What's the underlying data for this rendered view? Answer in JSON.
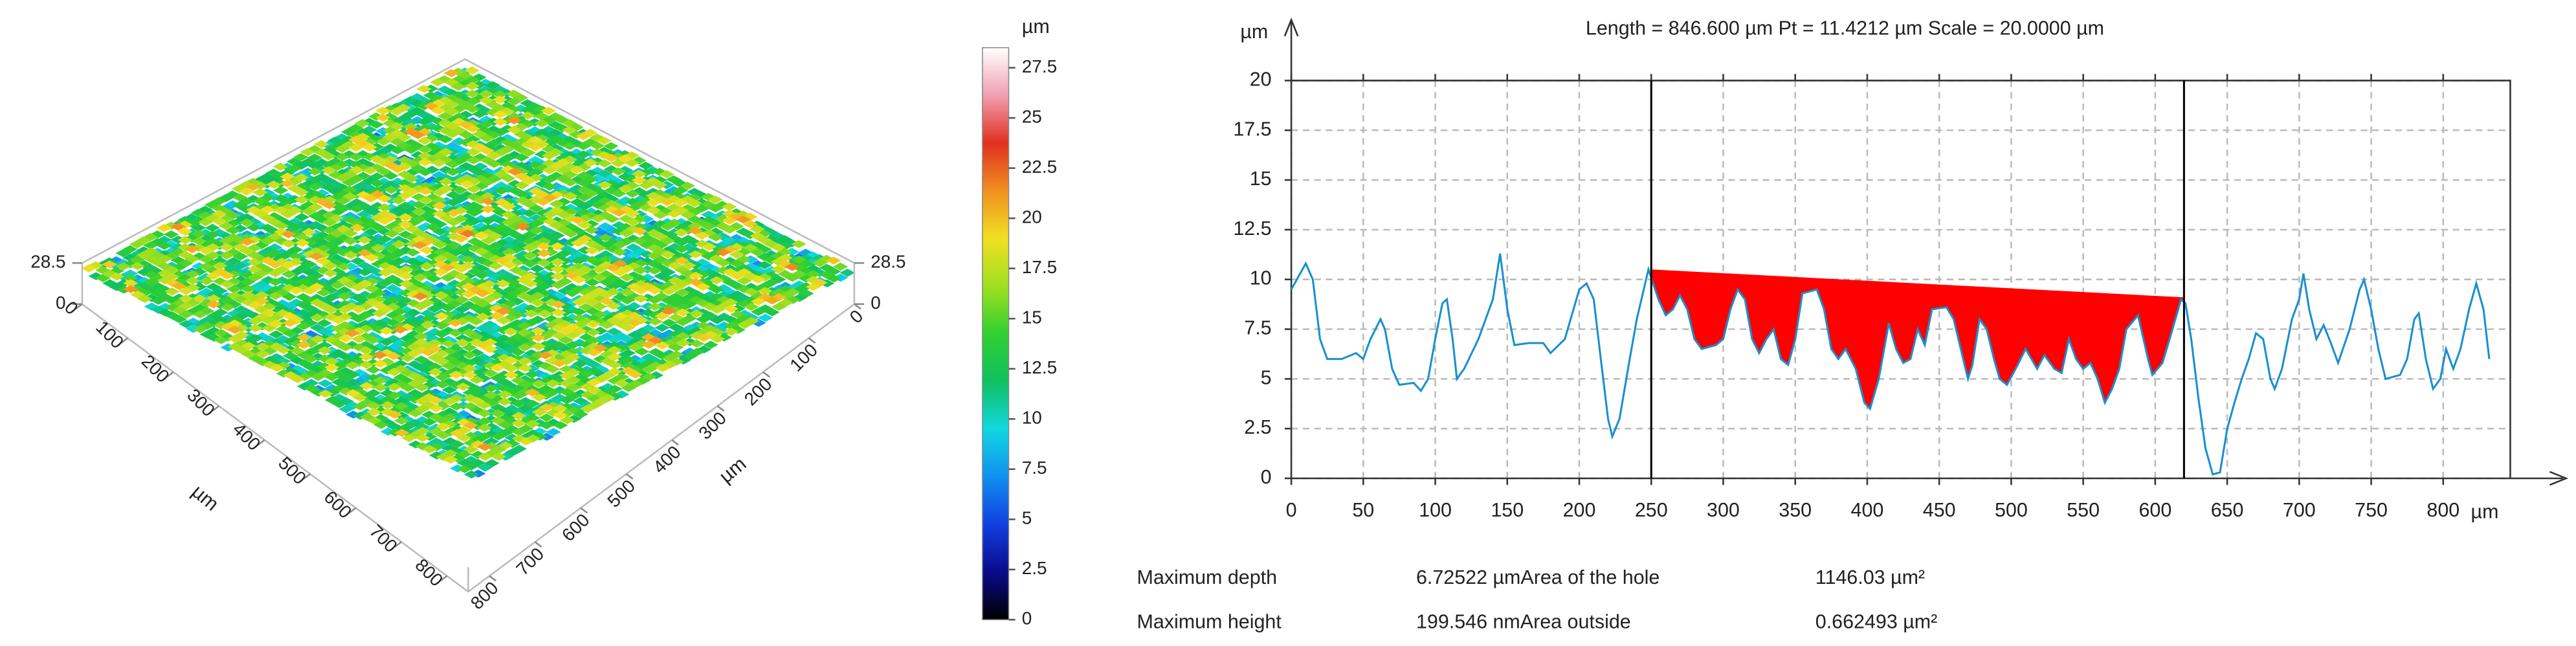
{
  "chart_data": [
    {
      "type": "surface",
      "zlim": [
        0,
        28.5
      ],
      "zticks": [
        0,
        28.5
      ],
      "xlim": [
        0,
        846.6
      ],
      "xticks": [
        0,
        100,
        200,
        300,
        400,
        500,
        600,
        700,
        800
      ],
      "xlabel": "µm",
      "ylim": [
        0,
        846.6
      ],
      "yticks": [
        0,
        100,
        200,
        300,
        400,
        500,
        600,
        700,
        800
      ],
      "ylabel": "µm",
      "colorbar": {
        "label": "µm",
        "lim": [
          0,
          28.5
        ],
        "ticks": [
          0,
          2.5,
          5,
          7.5,
          10,
          12.5,
          15,
          17.5,
          20,
          22.5,
          25,
          27.5
        ],
        "colors": [
          "#000000",
          "#0a0a8c",
          "#1040e0",
          "#1090f0",
          "#10d8e0",
          "#10c060",
          "#30d030",
          "#a0e020",
          "#f0e020",
          "#f09020",
          "#e03020",
          "#f0a0b0",
          "#ffffff"
        ]
      }
    },
    {
      "type": "line",
      "title": "Length = 846.600 µm  Pt = 11.4212 µm  Scale = 20.0000 µm",
      "x_unit": "µm",
      "y_unit": "µm",
      "xlim": [
        0,
        846.6
      ],
      "xticks": [
        0,
        50,
        100,
        150,
        200,
        250,
        300,
        350,
        400,
        450,
        500,
        550,
        600,
        650,
        700,
        750,
        800
      ],
      "ylim": [
        0,
        20
      ],
      "yticks": [
        0,
        2.5,
        5,
        7.5,
        10,
        12.5,
        15,
        17.5,
        20
      ],
      "grid": true,
      "markers": [
        250,
        620
      ],
      "hole_level": [
        10.5,
        9.1
      ],
      "hole_color": "#ff0000",
      "x": [
        0,
        10,
        15,
        20,
        25,
        35,
        45,
        50,
        55,
        62,
        65,
        70,
        75,
        85,
        90,
        95,
        100,
        105,
        108,
        112,
        115,
        120,
        130,
        140,
        145,
        150,
        155,
        165,
        175,
        180,
        190,
        200,
        205,
        210,
        215,
        220,
        223,
        228,
        235,
        240,
        248,
        255,
        260,
        265,
        270,
        275,
        280,
        285,
        295,
        300,
        305,
        310,
        315,
        320,
        325,
        330,
        335,
        340,
        345,
        350,
        355,
        365,
        370,
        375,
        380,
        385,
        392,
        398,
        402,
        408,
        415,
        420,
        425,
        430,
        435,
        440,
        445,
        455,
        460,
        465,
        470,
        473,
        478,
        483,
        488,
        492,
        497,
        503,
        510,
        518,
        523,
        530,
        535,
        540,
        545,
        550,
        555,
        560,
        565,
        570,
        575,
        580,
        588,
        595,
        598,
        605,
        612,
        618,
        621,
        625,
        630,
        635,
        640,
        645,
        650,
        655,
        660,
        665,
        670,
        675,
        680,
        683,
        688,
        695,
        700,
        703,
        707,
        712,
        717,
        722,
        727,
        735,
        742,
        745,
        750,
        755,
        760,
        770,
        775,
        780,
        783,
        788,
        793,
        798,
        802,
        807,
        812,
        818,
        823,
        828,
        832
      ],
      "series": [
        {
          "color": "#1a8fd0",
          "values": [
            9.5,
            10.8,
            10,
            7,
            6,
            6,
            6.3,
            6,
            7,
            8,
            7.5,
            5.5,
            4.7,
            4.8,
            4.4,
            5,
            7,
            8.8,
            9,
            7,
            5,
            5.5,
            7,
            9,
            11.3,
            8.5,
            6.7,
            6.8,
            6.8,
            6.3,
            7,
            9.5,
            9.8,
            9,
            6,
            3,
            2.1,
            3,
            6,
            8,
            10.5,
            9,
            8.2,
            8.5,
            9.2,
            8.5,
            7,
            6.5,
            6.7,
            7,
            8.5,
            9.5,
            9,
            7,
            6.3,
            7,
            7.5,
            6,
            5.7,
            7,
            9.3,
            9.5,
            8.5,
            6.5,
            6,
            6.5,
            5.5,
            3.8,
            3.5,
            5,
            7.8,
            6.5,
            5.8,
            6,
            7.5,
            6.7,
            8.5,
            8.6,
            8,
            6.5,
            5,
            5.7,
            8,
            7.5,
            6,
            5,
            4.7,
            5.5,
            6.5,
            5.5,
            6.2,
            5.5,
            5.3,
            7,
            6,
            5.5,
            5.8,
            5,
            3.8,
            4.5,
            5.5,
            7.5,
            8.2,
            6,
            5.2,
            5.8,
            7.5,
            9,
            8.8,
            7,
            4,
            1.5,
            0.2,
            0.3,
            2.5,
            3.8,
            5,
            6,
            7.3,
            7,
            5,
            4.5,
            5.5,
            8,
            9,
            10.3,
            8.5,
            7,
            7.7,
            6.8,
            5.8,
            7.5,
            9.5,
            10,
            8.5,
            6.5,
            5,
            5.2,
            6,
            8,
            8.3,
            6,
            4.5,
            5,
            6.5,
            5.5,
            6.5,
            8.5,
            9.8,
            8.5,
            6
          ]
        }
      ]
    }
  ],
  "stats": {
    "rows": [
      [
        "Maximum depth",
        "6.72522 µmArea of the hole",
        "1146.03 µm²"
      ],
      [
        "Maximum height",
        "199.546 nmArea outside",
        "0.662493 µm²"
      ]
    ]
  }
}
